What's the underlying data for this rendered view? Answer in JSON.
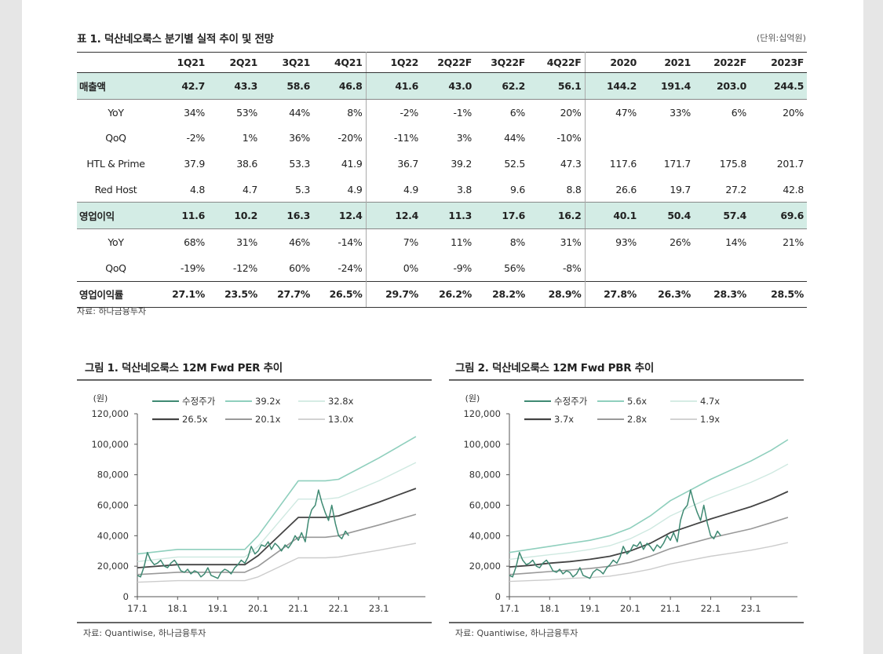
{
  "table_title": "표 1. 덕산네오룩스 분기별 실적 추이 및 전망",
  "unit_label": "(단위:십억원)",
  "columns": [
    "1Q21",
    "2Q21",
    "3Q21",
    "4Q21",
    "1Q22",
    "2Q22F",
    "3Q22F",
    "4Q22F",
    "2020",
    "2021",
    "2022F",
    "2023F"
  ],
  "rows": [
    {
      "label": "매출액",
      "hl": true,
      "values": [
        "42.7",
        "43.3",
        "58.6",
        "46.8",
        "41.6",
        "43.0",
        "62.2",
        "56.1",
        "144.2",
        "191.4",
        "203.0",
        "244.5"
      ]
    },
    {
      "label": "YoY",
      "values": [
        "34%",
        "53%",
        "44%",
        "8%",
        "-2%",
        "-1%",
        "6%",
        "20%",
        "47%",
        "33%",
        "6%",
        "20%"
      ]
    },
    {
      "label": "QoQ",
      "values": [
        "-2%",
        "1%",
        "36%",
        "-20%",
        "-11%",
        "3%",
        "44%",
        "-10%",
        "",
        "",
        "",
        ""
      ]
    },
    {
      "label": "HTL & Prime",
      "values": [
        "37.9",
        "38.6",
        "53.3",
        "41.9",
        "36.7",
        "39.2",
        "52.5",
        "47.3",
        "117.6",
        "171.7",
        "175.8",
        "201.7"
      ]
    },
    {
      "label": "Red Host",
      "values": [
        "4.8",
        "4.7",
        "5.3",
        "4.9",
        "4.9",
        "3.8",
        "9.6",
        "8.8",
        "26.6",
        "19.7",
        "27.2",
        "42.8"
      ]
    },
    {
      "label": "영업이익",
      "hl": true,
      "values": [
        "11.6",
        "10.2",
        "16.3",
        "12.4",
        "12.4",
        "11.3",
        "17.6",
        "16.2",
        "40.1",
        "50.4",
        "57.4",
        "69.6"
      ]
    },
    {
      "label": "YoY",
      "values": [
        "68%",
        "31%",
        "46%",
        "-14%",
        "7%",
        "11%",
        "8%",
        "31%",
        "93%",
        "26%",
        "14%",
        "21%"
      ]
    },
    {
      "label": "QoQ",
      "values": [
        "-19%",
        "-12%",
        "60%",
        "-24%",
        "0%",
        "-9%",
        "56%",
        "-8%",
        "",
        "",
        "",
        ""
      ]
    },
    {
      "label": "영업이익률",
      "last": true,
      "values": [
        "27.1%",
        "23.5%",
        "27.7%",
        "26.5%",
        "29.7%",
        "26.2%",
        "28.2%",
        "28.9%",
        "27.8%",
        "26.3%",
        "28.3%",
        "28.5%"
      ]
    }
  ],
  "table_source": "자료: 하나금융투자",
  "chart_data": [
    {
      "type": "line",
      "title": "그림 1. 덕산네오룩스 12M Fwd PER 추이",
      "ylabel": "(원)",
      "ylim": [
        0,
        120000
      ],
      "yticks": [
        "0",
        "20,000",
        "40,000",
        "60,000",
        "80,000",
        "100,000",
        "120,000"
      ],
      "xticks": [
        "17.1",
        "18.1",
        "19.1",
        "20.1",
        "21.1",
        "22.1",
        "23.1"
      ],
      "legend_position": "top",
      "source": "자료: Quantiwise, 하나금융투자",
      "x": [
        2017.0,
        2018.0,
        2019.0,
        2019.67,
        2020.0,
        2021.0,
        2021.67,
        2022.0,
        2023.0,
        2023.92
      ],
      "series": [
        {
          "name": "39.2x",
          "color": "#8fcfbd",
          "width": 1.6,
          "values": [
            28000,
            31000,
            31000,
            31000,
            40000,
            76000,
            76000,
            77000,
            91000,
            105000
          ]
        },
        {
          "name": "32.8x",
          "color": "#cfe9e1",
          "width": 1.4,
          "values": [
            23000,
            26000,
            26000,
            26000,
            33000,
            64000,
            64000,
            65000,
            76000,
            88000
          ]
        },
        {
          "name": "26.5x",
          "color": "#444444",
          "width": 1.8,
          "values": [
            19000,
            21000,
            21000,
            21000,
            27000,
            52000,
            52000,
            53000,
            62000,
            71000
          ]
        },
        {
          "name": "20.1x",
          "color": "#999999",
          "width": 1.6,
          "values": [
            14500,
            16000,
            16000,
            16000,
            20000,
            39000,
            39000,
            40000,
            47000,
            54000
          ]
        },
        {
          "name": "13.0x",
          "color": "#cccccc",
          "width": 1.4,
          "values": [
            9500,
            10500,
            10500,
            10500,
            13000,
            25500,
            25500,
            26000,
            30500,
            35000
          ]
        }
      ],
      "price": {
        "name": "수정주가",
        "color": "#3f8a73",
        "x": [
          2017.0,
          2017.08,
          2017.17,
          2017.25,
          2017.33,
          2017.42,
          2017.5,
          2017.58,
          2017.67,
          2017.75,
          2017.83,
          2017.92,
          2018.0,
          2018.08,
          2018.17,
          2018.25,
          2018.33,
          2018.42,
          2018.5,
          2018.58,
          2018.67,
          2018.75,
          2018.83,
          2018.92,
          2019.0,
          2019.08,
          2019.17,
          2019.25,
          2019.33,
          2019.42,
          2019.5,
          2019.58,
          2019.67,
          2019.75,
          2019.83,
          2019.92,
          2020.0,
          2020.08,
          2020.17,
          2020.25,
          2020.33,
          2020.42,
          2020.5,
          2020.58,
          2020.67,
          2020.75,
          2020.83,
          2020.92,
          2021.0,
          2021.08,
          2021.17,
          2021.25,
          2021.33,
          2021.42,
          2021.5,
          2021.58,
          2021.67,
          2021.75,
          2021.83,
          2021.92,
          2022.0,
          2022.08,
          2022.17,
          2022.25
        ],
        "values": [
          14000,
          13000,
          20000,
          29000,
          24000,
          21000,
          22000,
          24000,
          20000,
          19000,
          22000,
          24000,
          21000,
          17000,
          16000,
          18000,
          15000,
          17000,
          16000,
          13000,
          15000,
          19000,
          14000,
          13000,
          12000,
          16000,
          18000,
          17000,
          15000,
          19000,
          21000,
          24000,
          22000,
          26000,
          33000,
          28000,
          30000,
          34000,
          33000,
          36000,
          31000,
          35000,
          33000,
          30000,
          34000,
          32000,
          35000,
          40000,
          37000,
          42000,
          36000,
          50000,
          57000,
          60000,
          70000,
          62000,
          55000,
          50000,
          60000,
          48000,
          40000,
          38000,
          43000,
          40000
        ]
      }
    },
    {
      "type": "line",
      "title": "그림 2. 덕산네오룩스 12M Fwd PBR 추이",
      "ylabel": "(원)",
      "ylim": [
        0,
        120000
      ],
      "yticks": [
        "0",
        "20,000",
        "40,000",
        "60,000",
        "80,000",
        "100,000",
        "120,000"
      ],
      "xticks": [
        "17.1",
        "18.1",
        "19.1",
        "20.1",
        "21.1",
        "22.1",
        "23.1"
      ],
      "legend_position": "top",
      "source": "자료: Quantiwise, 하나금융투자",
      "x": [
        2017.0,
        2017.5,
        2018.0,
        2018.5,
        2019.0,
        2019.5,
        2020.0,
        2020.5,
        2021.0,
        2021.5,
        2022.0,
        2022.5,
        2023.0,
        2023.5,
        2023.92
      ],
      "series": [
        {
          "name": "5.6x",
          "color": "#8fcfbd",
          "width": 1.6,
          "values": [
            29000,
            31000,
            33000,
            35000,
            37000,
            40000,
            45000,
            53000,
            63000,
            70000,
            77000,
            83000,
            89000,
            96000,
            103000
          ]
        },
        {
          "name": "4.7x",
          "color": "#cfe9e1",
          "width": 1.4,
          "values": [
            24500,
            26000,
            27500,
            29000,
            31000,
            33500,
            38000,
            44500,
            53000,
            59000,
            65000,
            70000,
            75000,
            81000,
            87000
          ]
        },
        {
          "name": "3.7x",
          "color": "#444444",
          "width": 1.8,
          "values": [
            19500,
            20500,
            22000,
            23000,
            24500,
            26500,
            30000,
            35000,
            42000,
            46500,
            51000,
            55000,
            59000,
            64000,
            69000
          ]
        },
        {
          "name": "2.8x",
          "color": "#999999",
          "width": 1.6,
          "values": [
            14500,
            15500,
            16500,
            17500,
            18500,
            20000,
            22500,
            26500,
            31500,
            35000,
            38500,
            41500,
            44500,
            48500,
            52000
          ]
        },
        {
          "name": "1.9x",
          "color": "#cccccc",
          "width": 1.4,
          "values": [
            10000,
            10500,
            11000,
            12000,
            12500,
            13500,
            15500,
            18000,
            21500,
            24000,
            26500,
            28500,
            30500,
            33000,
            35500
          ]
        }
      ],
      "price": {
        "name": "수정주가",
        "color": "#3f8a73",
        "x": [
          2017.0,
          2017.08,
          2017.17,
          2017.25,
          2017.33,
          2017.42,
          2017.5,
          2017.58,
          2017.67,
          2017.75,
          2017.83,
          2017.92,
          2018.0,
          2018.08,
          2018.17,
          2018.25,
          2018.33,
          2018.42,
          2018.5,
          2018.58,
          2018.67,
          2018.75,
          2018.83,
          2018.92,
          2019.0,
          2019.08,
          2019.17,
          2019.25,
          2019.33,
          2019.42,
          2019.5,
          2019.58,
          2019.67,
          2019.75,
          2019.83,
          2019.92,
          2020.0,
          2020.08,
          2020.17,
          2020.25,
          2020.33,
          2020.42,
          2020.5,
          2020.58,
          2020.67,
          2020.75,
          2020.83,
          2020.92,
          2021.0,
          2021.08,
          2021.17,
          2021.25,
          2021.33,
          2021.42,
          2021.5,
          2021.58,
          2021.67,
          2021.75,
          2021.83,
          2021.92,
          2022.0,
          2022.08,
          2022.17,
          2022.25
        ],
        "values": [
          14000,
          13000,
          20000,
          29000,
          24000,
          21000,
          22000,
          24000,
          20000,
          19000,
          22000,
          24000,
          21000,
          17000,
          16000,
          18000,
          15000,
          17000,
          16000,
          13000,
          15000,
          19000,
          14000,
          13000,
          12000,
          16000,
          18000,
          17000,
          15000,
          19000,
          21000,
          24000,
          22000,
          26000,
          33000,
          28000,
          30000,
          34000,
          33000,
          36000,
          31000,
          35000,
          33000,
          30000,
          34000,
          32000,
          35000,
          40000,
          37000,
          42000,
          36000,
          50000,
          57000,
          60000,
          70000,
          62000,
          55000,
          50000,
          60000,
          48000,
          40000,
          38000,
          43000,
          40000
        ]
      }
    }
  ]
}
